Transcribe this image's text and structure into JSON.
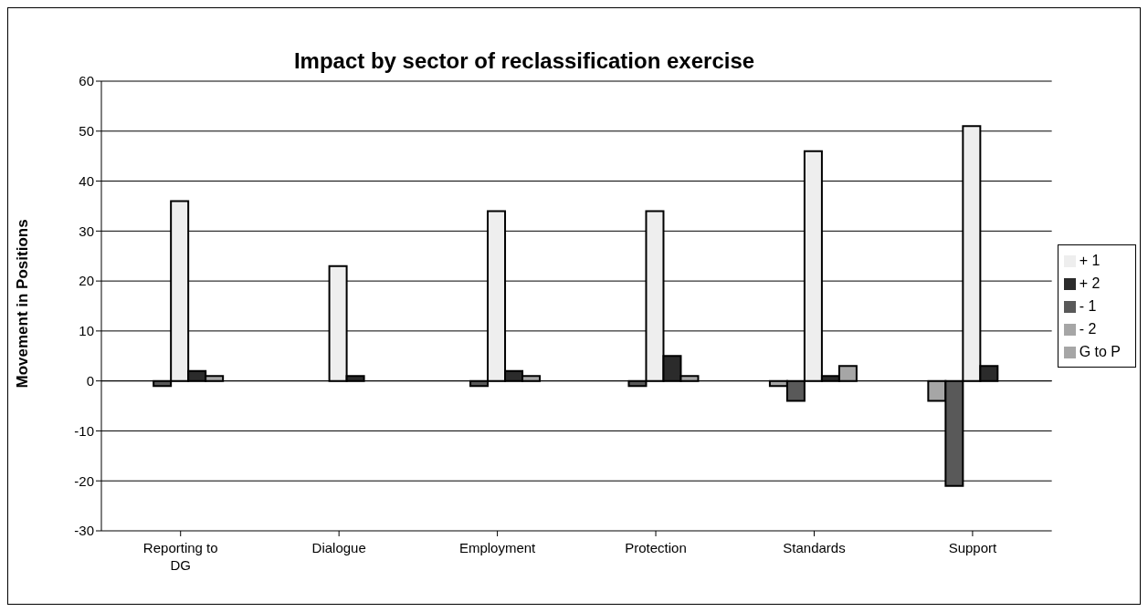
{
  "chart_data": {
    "type": "bar",
    "title": "Impact by sector of reclassification exercise",
    "ylabel": "Movement in Positions",
    "categories": [
      "Reporting to DG",
      "Dialogue",
      "Employment",
      "Protection",
      "Standards",
      "Support"
    ],
    "series": [
      {
        "name": "- 2",
        "color": "#a6a6a6",
        "values": [
          null,
          null,
          null,
          null,
          -1,
          -4
        ]
      },
      {
        "name": "- 1",
        "color": "#595959",
        "values": [
          -1,
          null,
          -1,
          -1,
          -4,
          -21
        ]
      },
      {
        "name": "+ 1",
        "color": "#eeeeee",
        "values": [
          36,
          23,
          34,
          34,
          46,
          51
        ]
      },
      {
        "name": "+ 2",
        "color": "#2b2b2b",
        "values": [
          2,
          1,
          2,
          5,
          1,
          3
        ]
      },
      {
        "name": "G to P",
        "color": "#a6a6a6",
        "values": [
          1,
          null,
          1,
          1,
          3,
          null
        ]
      }
    ],
    "ylim": [
      -30,
      60
    ],
    "yticks": [
      -30,
      -20,
      -10,
      0,
      10,
      20,
      30,
      40,
      50,
      60
    ],
    "grid": "y",
    "legend": "right"
  }
}
